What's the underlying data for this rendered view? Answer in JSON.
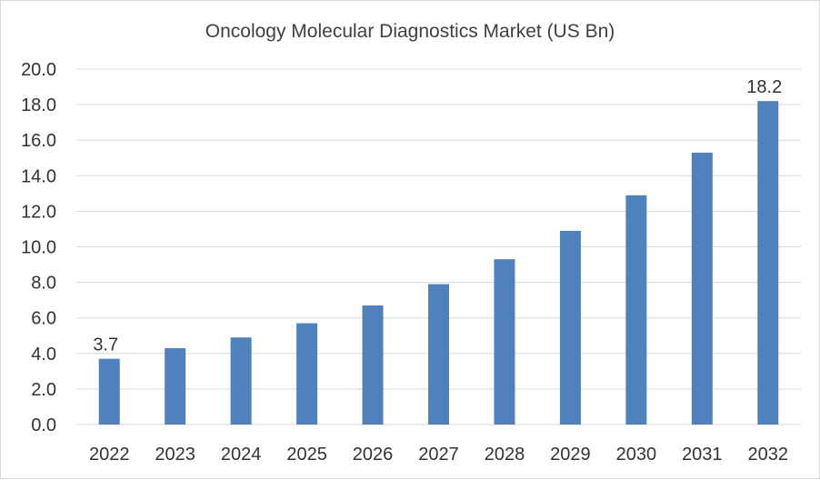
{
  "chart_data": {
    "type": "bar",
    "title": "Oncology Molecular Diagnostics Market (US Bn)",
    "xlabel": "",
    "ylabel": "",
    "categories": [
      "2022",
      "2023",
      "2024",
      "2025",
      "2026",
      "2027",
      "2028",
      "2029",
      "2030",
      "2031",
      "2032"
    ],
    "values": [
      3.7,
      4.3,
      4.9,
      5.7,
      6.7,
      7.9,
      9.3,
      10.9,
      12.9,
      15.3,
      18.2
    ],
    "ylim": [
      0,
      20
    ],
    "yticks": [
      "0.0",
      "2.0",
      "4.0",
      "6.0",
      "8.0",
      "10.0",
      "12.0",
      "14.0",
      "16.0",
      "18.0",
      "20.0"
    ],
    "data_labels": [
      {
        "category": "2022",
        "text": "3.7"
      },
      {
        "category": "2032",
        "text": "18.2"
      }
    ],
    "grid": true,
    "legend": "none",
    "bar_color": "#4f81bd",
    "grid_color": "#d9d9d9"
  }
}
